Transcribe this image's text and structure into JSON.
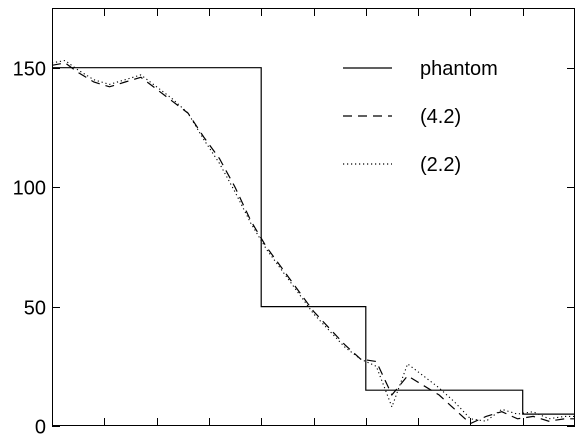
{
  "chart_data": {
    "type": "line",
    "title": "",
    "xlabel": "",
    "ylabel": "",
    "xlim": [
      0,
      1
    ],
    "ylim": [
      0,
      175
    ],
    "y_ticks": [
      0,
      50,
      100,
      150
    ],
    "y_tick_labels": [
      "0",
      "50",
      "100",
      "150"
    ],
    "x_ticks": [
      0,
      0.1,
      0.2,
      0.3,
      0.4,
      0.5,
      0.6,
      0.7,
      0.8,
      0.9,
      1.0
    ],
    "x_tick_labels": [],
    "grid": false,
    "legend": "top-right",
    "series": [
      {
        "name": "phantom",
        "style": "solid",
        "x": [
          0,
          0.4,
          0.4,
          0.6,
          0.6,
          0.8,
          0.8,
          0.9,
          0.9,
          1.0
        ],
        "y": [
          150,
          150,
          50,
          50,
          15,
          15,
          15,
          15,
          5,
          5
        ]
      },
      {
        "name": "(4.2)",
        "style": "dashed",
        "x": [
          0,
          0.025,
          0.05,
          0.08,
          0.11,
          0.14,
          0.17,
          0.2,
          0.23,
          0.26,
          0.29,
          0.32,
          0.35,
          0.38,
          0.41,
          0.44,
          0.47,
          0.5,
          0.53,
          0.56,
          0.59,
          0.62,
          0.65,
          0.68,
          0.71,
          0.74,
          0.77,
          0.8,
          0.83,
          0.86,
          0.89,
          0.92,
          0.95,
          0.98,
          1.0
        ],
        "y": [
          151,
          152,
          148,
          144,
          142,
          144,
          146,
          141,
          136,
          131,
          121,
          112,
          100,
          86,
          75,
          66,
          57,
          48,
          41,
          34,
          28,
          27,
          13,
          21,
          17,
          13,
          7,
          1,
          4,
          6,
          3,
          4,
          2,
          3,
          3
        ]
      },
      {
        "name": "(2.2)",
        "style": "dotted",
        "x": [
          0,
          0.025,
          0.05,
          0.08,
          0.11,
          0.14,
          0.17,
          0.2,
          0.23,
          0.26,
          0.29,
          0.32,
          0.35,
          0.38,
          0.41,
          0.44,
          0.47,
          0.5,
          0.53,
          0.56,
          0.59,
          0.62,
          0.65,
          0.68,
          0.71,
          0.74,
          0.77,
          0.8,
          0.83,
          0.86,
          0.89,
          0.92,
          0.95,
          0.98,
          1.0
        ],
        "y": [
          152,
          153,
          149,
          145,
          143,
          145,
          147,
          142,
          137,
          131,
          120,
          110,
          98,
          85,
          74,
          65,
          56,
          47,
          40,
          33,
          28,
          25,
          8,
          26,
          21,
          16,
          10,
          3,
          2,
          7,
          5,
          6,
          3,
          4,
          4
        ]
      }
    ]
  }
}
